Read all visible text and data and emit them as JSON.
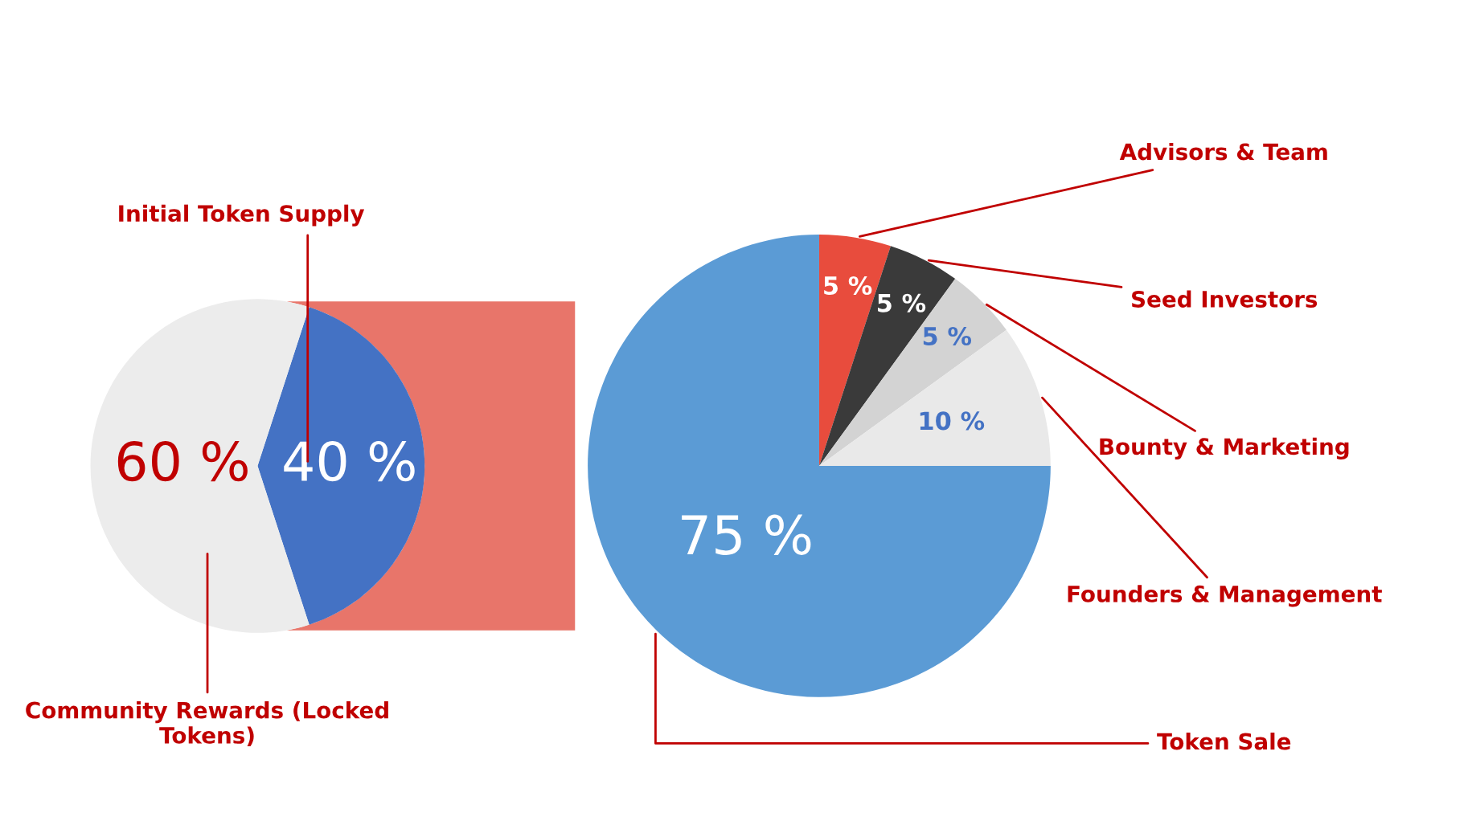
{
  "chart_data": [
    {
      "type": "pie",
      "categories": [
        "Initial Token Supply",
        "Community Rewards (Locked Tokens)"
      ],
      "values": [
        40,
        60
      ],
      "colors": [
        "#4472c4",
        "#ececec"
      ],
      "value_labels": [
        "40 %",
        "60 %"
      ]
    },
    {
      "type": "pie",
      "categories": [
        "Advisors & Team",
        "Seed Investors",
        "Bounty & Marketing",
        "Founders & Management",
        "Token Sale"
      ],
      "values": [
        5,
        5,
        5,
        10,
        75
      ],
      "colors": [
        "#e84c3d",
        "#3a3a3a",
        "#d3d3d3",
        "#e9e9e9",
        "#5b9bd5"
      ],
      "value_labels": [
        "5 %",
        "5 %",
        "5 %",
        "10 %",
        "75 %"
      ]
    }
  ]
}
